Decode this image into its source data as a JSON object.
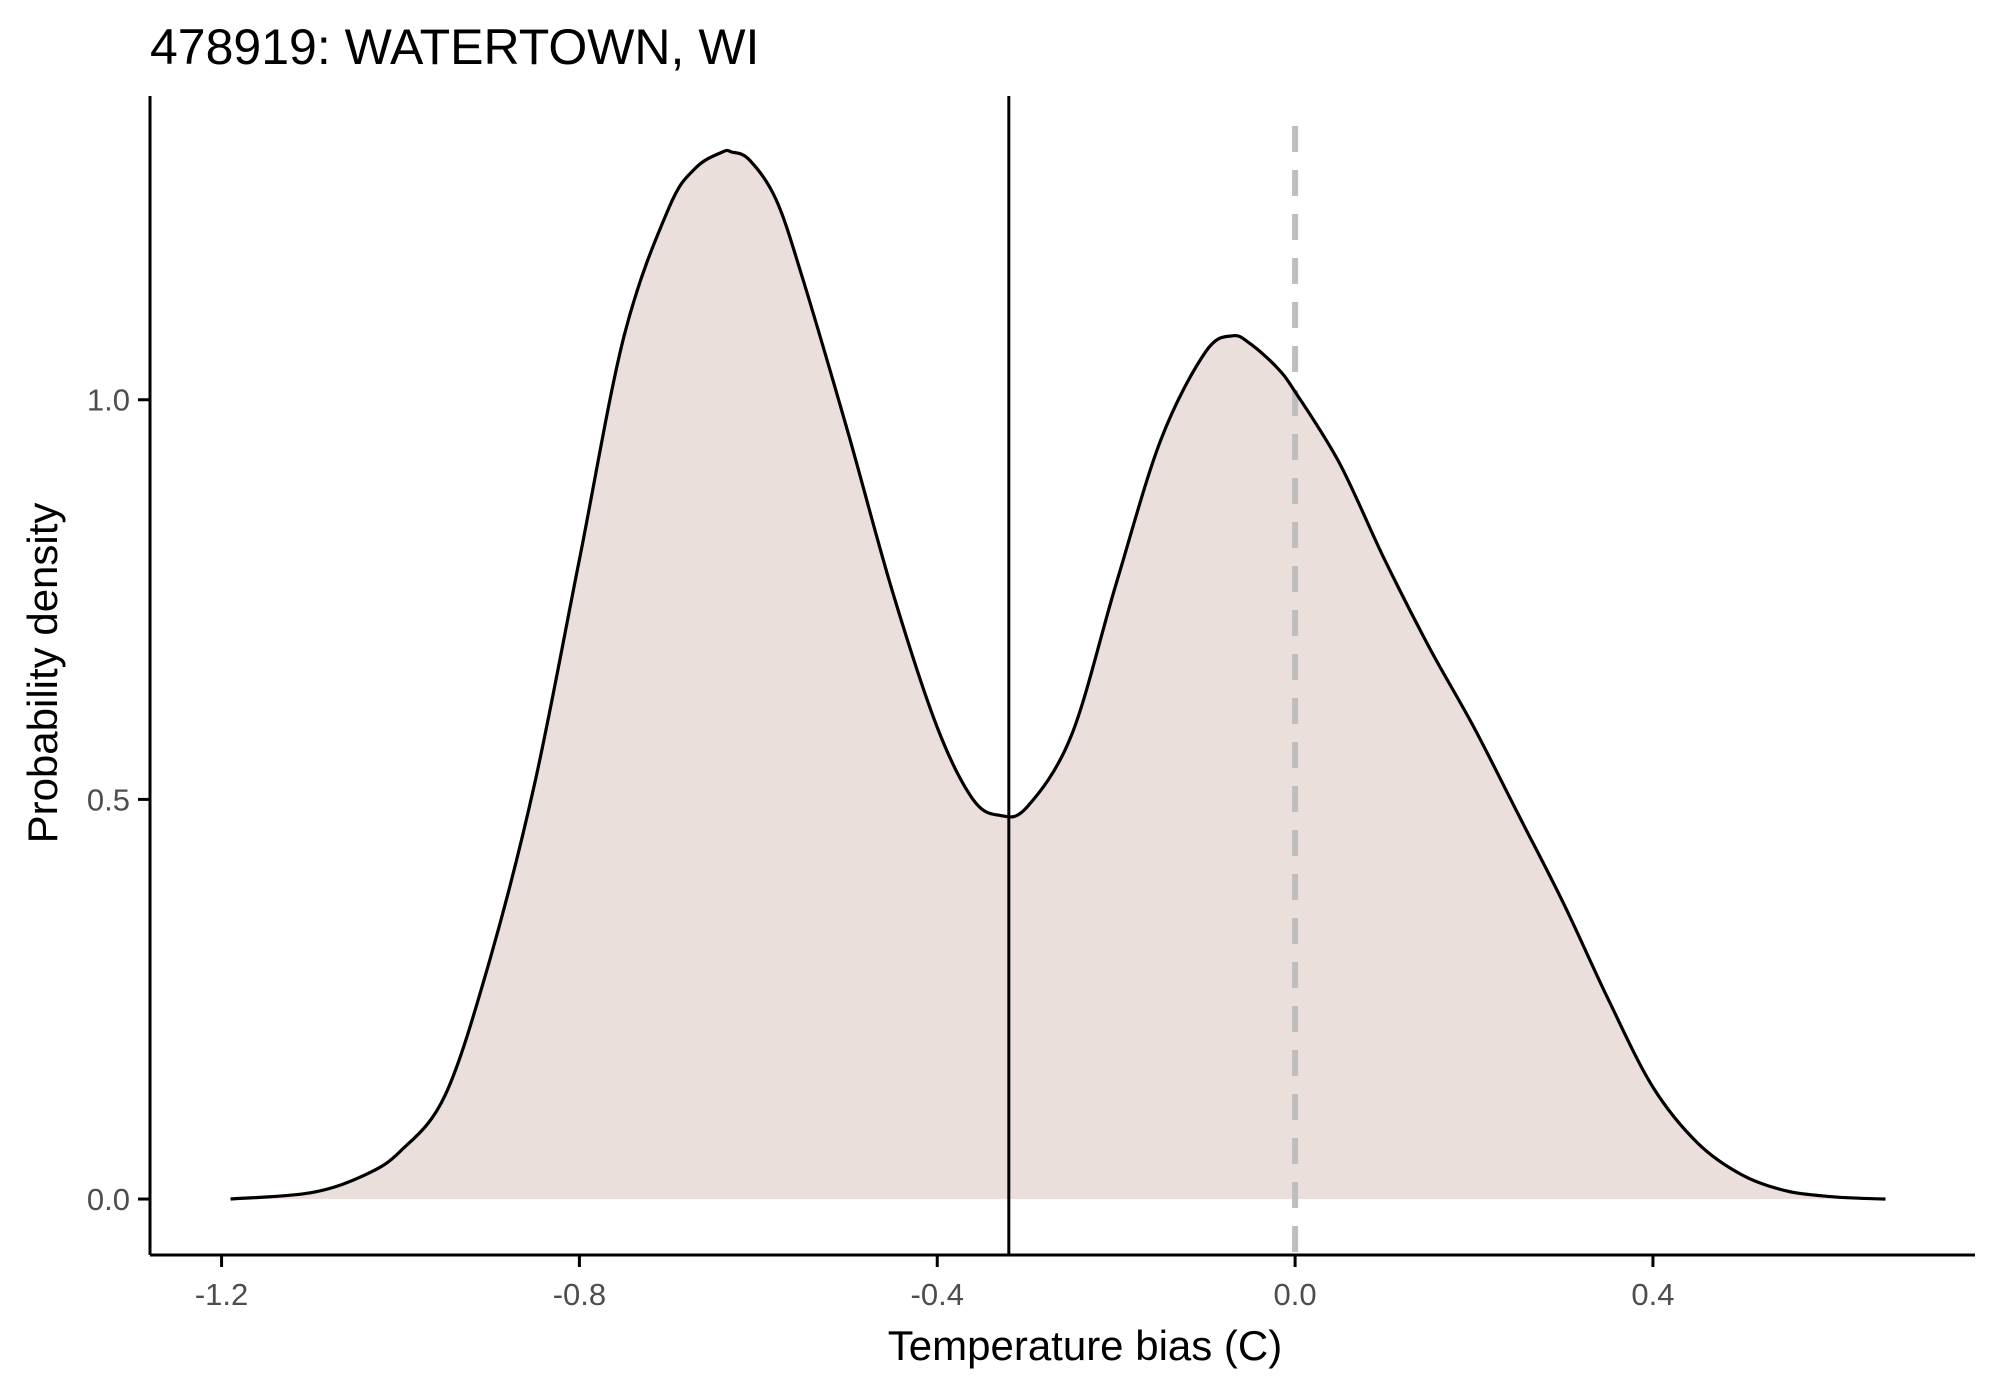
{
  "chart_data": {
    "type": "area",
    "title": "478919: WATERTOWN, WI",
    "xlabel": "Temperature bias (C)",
    "ylabel": "Probability density",
    "xlim": [
      -1.28,
      0.76
    ],
    "ylim": [
      -0.07,
      1.38
    ],
    "x_ticks": [
      -1.2,
      -0.8,
      -0.4,
      0.0,
      0.4
    ],
    "x_tick_labels": [
      "-1.2",
      "-0.8",
      "-0.4",
      "0.0",
      "0.4"
    ],
    "y_ticks": [
      0.0,
      0.5,
      1.0
    ],
    "y_tick_labels": [
      "0.0",
      "0.5",
      "1.0"
    ],
    "grid": false,
    "fill_color": "#ebdfdc",
    "line_color": "#000000",
    "reference_lines": [
      {
        "x": -0.32,
        "style": "solid",
        "color": "#000000"
      },
      {
        "x": 0.0,
        "style": "dashed",
        "color": "#bebebe"
      }
    ],
    "series": [
      {
        "x": [
          -1.19,
          -1.1,
          -1.04,
          -1.0,
          -0.95,
          -0.9,
          -0.85,
          -0.8,
          -0.75,
          -0.7,
          -0.67,
          -0.64,
          -0.63,
          -0.61,
          -0.58,
          -0.55,
          -0.5,
          -0.45,
          -0.4,
          -0.36,
          -0.33,
          -0.3,
          -0.25,
          -0.2,
          -0.15,
          -0.1,
          -0.07,
          -0.05,
          -0.02,
          0.0,
          0.05,
          0.1,
          0.15,
          0.2,
          0.25,
          0.3,
          0.35,
          0.4,
          0.45,
          0.5,
          0.55,
          0.6,
          0.63,
          0.66
        ],
        "y": [
          0.0,
          0.008,
          0.03,
          0.06,
          0.13,
          0.3,
          0.52,
          0.8,
          1.08,
          1.24,
          1.29,
          1.31,
          1.31,
          1.3,
          1.25,
          1.15,
          0.96,
          0.76,
          0.59,
          0.5,
          0.48,
          0.49,
          0.58,
          0.77,
          0.95,
          1.06,
          1.08,
          1.07,
          1.04,
          1.01,
          0.92,
          0.8,
          0.69,
          0.59,
          0.48,
          0.37,
          0.25,
          0.14,
          0.07,
          0.03,
          0.01,
          0.003,
          0.001,
          0.0
        ]
      }
    ]
  }
}
